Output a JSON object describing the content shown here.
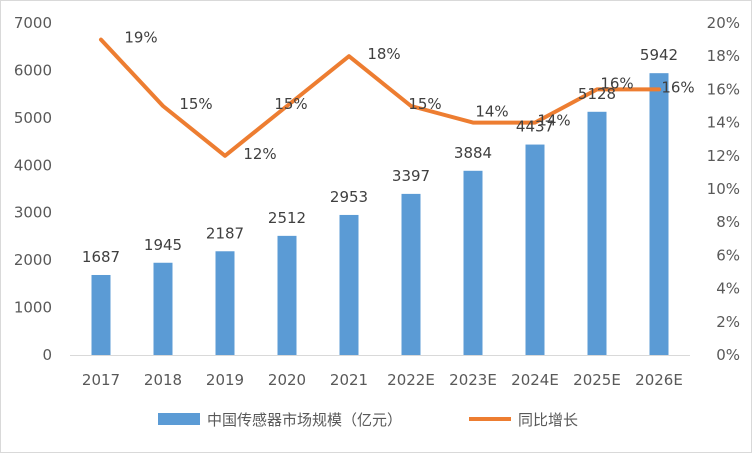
{
  "chart_data": {
    "type": "bar+line",
    "categories": [
      "2017",
      "2018",
      "2019",
      "2020",
      "2021",
      "2022E",
      "2023E",
      "2024E",
      "2025E",
      "2026E"
    ],
    "series": [
      {
        "name": "中国传感器市场规模（亿元）",
        "type": "bar",
        "axis": "left",
        "values": [
          1687,
          1945,
          2187,
          2512,
          2953,
          3397,
          3884,
          4437,
          5128,
          5942
        ],
        "labels": [
          "1687",
          "1945",
          "2187",
          "2512",
          "2953",
          "3397",
          "3884",
          "4437",
          "5128",
          "5942"
        ],
        "color": "#5b9bd5"
      },
      {
        "name": "同比增长",
        "type": "line",
        "axis": "right",
        "values": [
          19,
          15,
          12,
          15,
          18,
          15,
          14,
          14,
          16,
          16
        ],
        "labels": [
          "19%",
          "15%",
          "12%",
          "15%",
          "18%",
          "15%",
          "14%",
          "14%",
          "16%",
          "16%"
        ],
        "color": "#ed7d31"
      }
    ],
    "y_left": {
      "min": 0,
      "max": 7000,
      "ticks": [
        "0",
        "1000",
        "2000",
        "3000",
        "4000",
        "5000",
        "6000",
        "7000"
      ]
    },
    "y_right": {
      "min": 0,
      "max": 20,
      "ticks": [
        "0%",
        "2%",
        "4%",
        "6%",
        "8%",
        "10%",
        "12%",
        "14%",
        "16%",
        "18%",
        "20%"
      ]
    },
    "legend_position": "bottom",
    "grid": false
  }
}
